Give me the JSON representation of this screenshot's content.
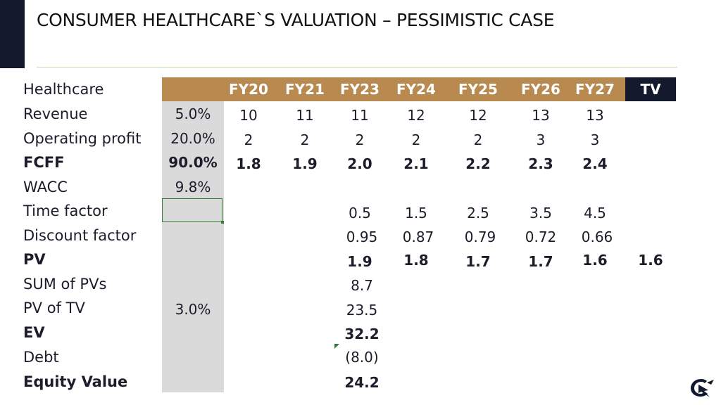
{
  "slide": {
    "title": "CONSUMER HEALTHCARE`S VALUATION – PESSIMISTIC CASE"
  },
  "table": {
    "corner_label": "Healthcare",
    "years": [
      "FY20",
      "FY21",
      "FY23",
      "FY24",
      "FY25",
      "FY26",
      "FY27"
    ],
    "tv_label": "TV",
    "rows": {
      "revenue": {
        "label": "Revenue",
        "assumption": "5.0%",
        "values": [
          "10",
          "11",
          "11",
          "12",
          "12",
          "13",
          "13"
        ]
      },
      "operating_profit": {
        "label": "Operating profit",
        "assumption": "20.0%",
        "values": [
          "2",
          "2",
          "2",
          "2",
          "2",
          "3",
          "3"
        ]
      },
      "fcff": {
        "label": "FCFF",
        "assumption": "90.0%",
        "values": [
          "1.8",
          "1.9",
          "2.0",
          "2.1",
          "2.2",
          "2.3",
          "2.4"
        ]
      },
      "wacc": {
        "label": "WACC",
        "assumption": "9.8%"
      },
      "time_factor": {
        "label": "Time factor",
        "values": [
          "0.5",
          "1.5",
          "2.5",
          "3.5",
          "4.5"
        ]
      },
      "discount_factor": {
        "label": "Discount factor",
        "values": [
          "0.95",
          "0.87",
          "0.79",
          "0.72",
          "0.66"
        ]
      },
      "pv": {
        "label": "PV",
        "values": [
          "1.9",
          "1.8",
          "1.7",
          "1.7",
          "1.6"
        ],
        "tv": "1.6"
      },
      "sum_pvs": {
        "label": "SUM of PVs",
        "value": "8.7"
      },
      "pv_tv": {
        "label": "PV of TV",
        "assumption": "3.0%",
        "value": "23.5"
      },
      "ev": {
        "label": "EV",
        "value": "32.2"
      },
      "debt": {
        "label": "Debt",
        "value": "(8.0)"
      },
      "equity_value": {
        "label": "Equity Value",
        "value": "24.2"
      }
    }
  },
  "colors": {
    "header_band": "#b88a4f",
    "tv_band": "#141a2e",
    "assumption_shade": "#dadada",
    "selection": "#2e7d32"
  },
  "icons": {
    "brand_logo": "bird-logo-icon"
  }
}
